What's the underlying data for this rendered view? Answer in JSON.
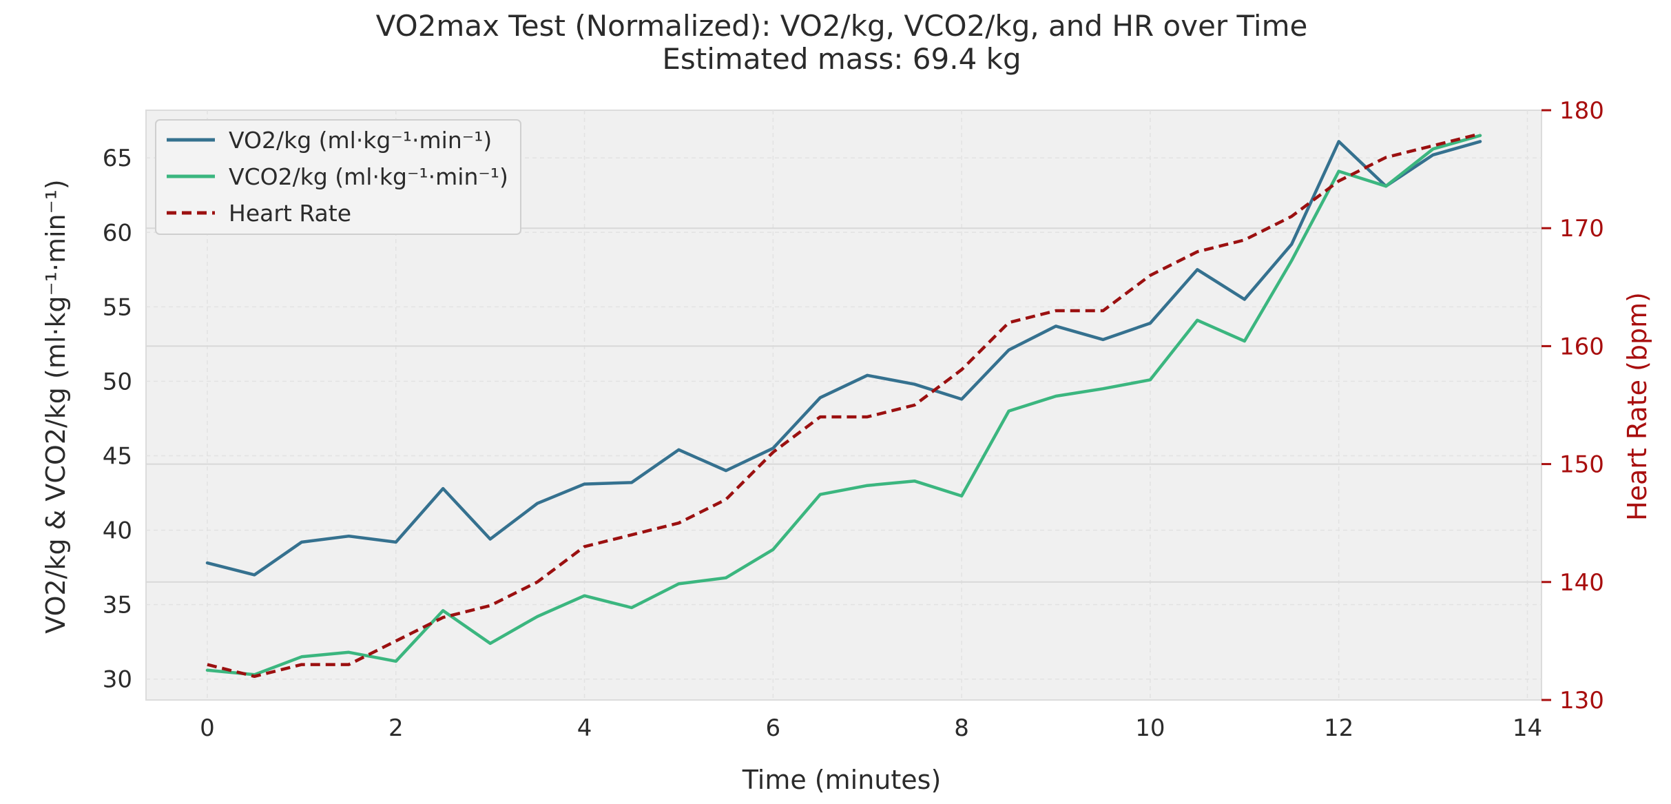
{
  "chart_data": {
    "type": "line",
    "title": "VO2max Test (Normalized): VO2/kg, VCO2/kg, and HR over Time",
    "subtitle": "Estimated mass: 69.4 kg",
    "xlabel": "Time (minutes)",
    "ylabel": "VO2/kg & VCO2/kg (ml·kg⁻¹·min⁻¹)",
    "y2label": "Heart Rate (bpm)",
    "xlim": [
      -0.65,
      14.15
    ],
    "ylim": [
      28.6,
      68.2
    ],
    "y2lim": [
      130,
      180
    ],
    "xticks": [
      0,
      2,
      4,
      6,
      8,
      10,
      12,
      14
    ],
    "yticks": [
      30,
      35,
      40,
      45,
      50,
      55,
      60,
      65
    ],
    "y2ticks": [
      130,
      140,
      150,
      160,
      170,
      180
    ],
    "grid": true,
    "legend_position": "top-left",
    "x": [
      0,
      0.5,
      1,
      1.5,
      2,
      2.5,
      3,
      3.5,
      4,
      4.5,
      5,
      5.5,
      6,
      6.5,
      7,
      7.5,
      8,
      8.5,
      9,
      9.5,
      10,
      10.5,
      11,
      11.5,
      12,
      12.5,
      13,
      13.5
    ],
    "series": [
      {
        "name": "VO2/kg (ml·kg⁻¹·min⁻¹)",
        "axis": "left",
        "color": "#35718f",
        "style": "solid",
        "values": [
          37.8,
          37.0,
          39.2,
          39.6,
          39.2,
          42.8,
          39.4,
          41.8,
          43.1,
          43.2,
          45.4,
          44.0,
          45.5,
          48.9,
          50.4,
          49.8,
          48.8,
          52.1,
          53.7,
          52.8,
          53.9,
          57.5,
          55.5,
          59.2,
          66.1,
          63.1,
          65.2,
          66.1
        ]
      },
      {
        "name": "VCO2/kg (ml·kg⁻¹·min⁻¹)",
        "axis": "left",
        "color": "#3bb67f",
        "style": "solid",
        "values": [
          30.6,
          30.3,
          31.5,
          31.8,
          31.2,
          34.6,
          32.4,
          34.2,
          35.6,
          34.8,
          36.4,
          36.8,
          38.7,
          42.4,
          43.0,
          43.3,
          42.3,
          48.0,
          49.0,
          49.5,
          50.1,
          54.1,
          52.7,
          58.1,
          64.1,
          63.1,
          65.6,
          66.5
        ]
      },
      {
        "name": "Heart Rate",
        "axis": "right",
        "color": "#9b1010",
        "style": "dashed",
        "values": [
          133,
          132,
          133,
          133,
          135,
          137,
          138,
          140,
          143,
          144,
          145,
          147,
          151,
          154,
          154,
          155,
          158,
          162,
          163,
          163,
          166,
          168,
          169,
          171,
          174,
          176,
          177,
          178
        ]
      }
    ]
  }
}
